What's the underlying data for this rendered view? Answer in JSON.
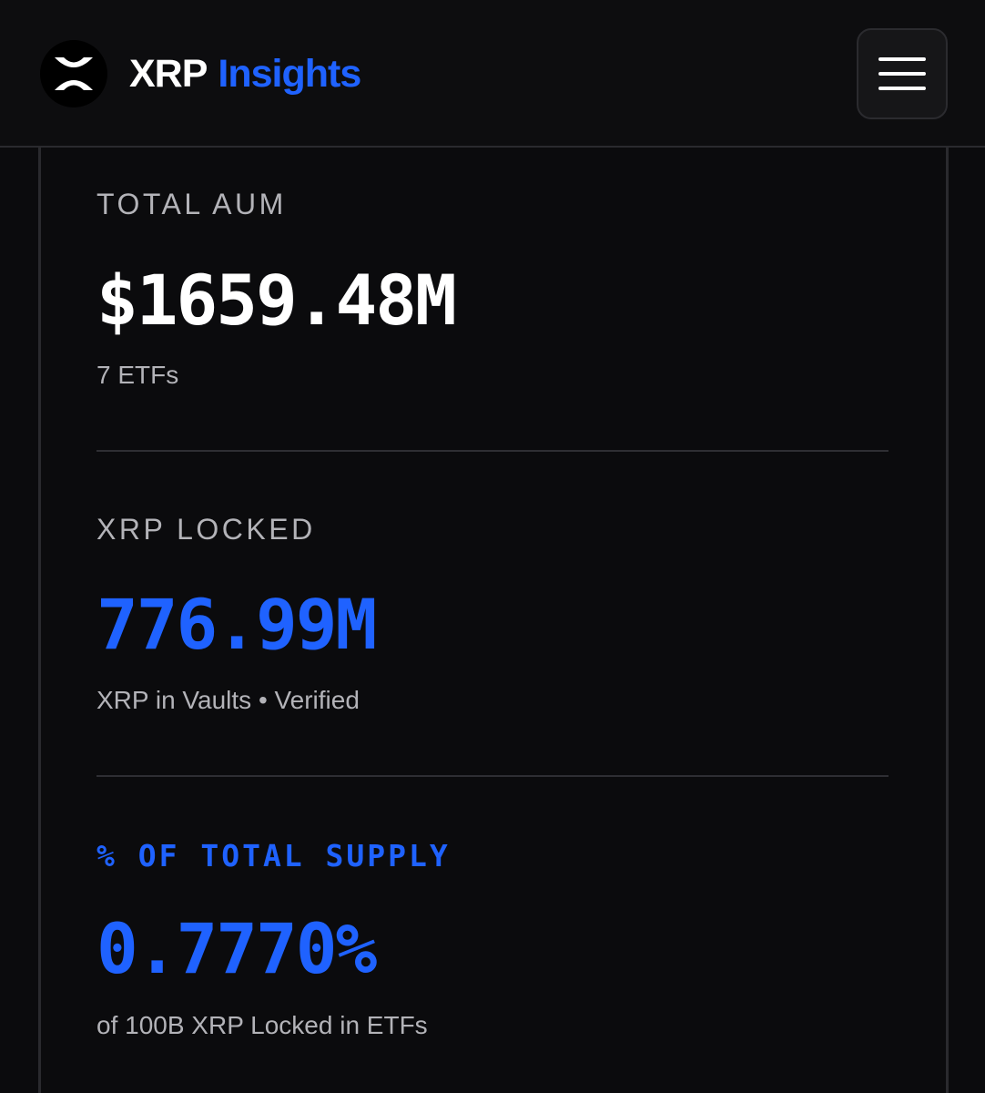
{
  "header": {
    "brand_primary": "XRP",
    "brand_accent": "Insights",
    "logo_icon": "xrp-logo-icon",
    "menu_icon": "hamburger-menu-icon"
  },
  "stats": [
    {
      "label": "TOTAL AUM",
      "value": "$1659.48M",
      "sub": "7 ETFs"
    },
    {
      "label": "XRP LOCKED",
      "value": "776.99M",
      "sub": "XRP in Vaults • Verified"
    },
    {
      "label": "% OF TOTAL SUPPLY",
      "value": "0.7770%",
      "sub": "of 100B XRP Locked in ETFs"
    }
  ],
  "colors": {
    "background": "#0b0b0d",
    "accent": "#1f62ff",
    "text_primary": "#ffffff",
    "text_muted": "#b3b3b8"
  }
}
